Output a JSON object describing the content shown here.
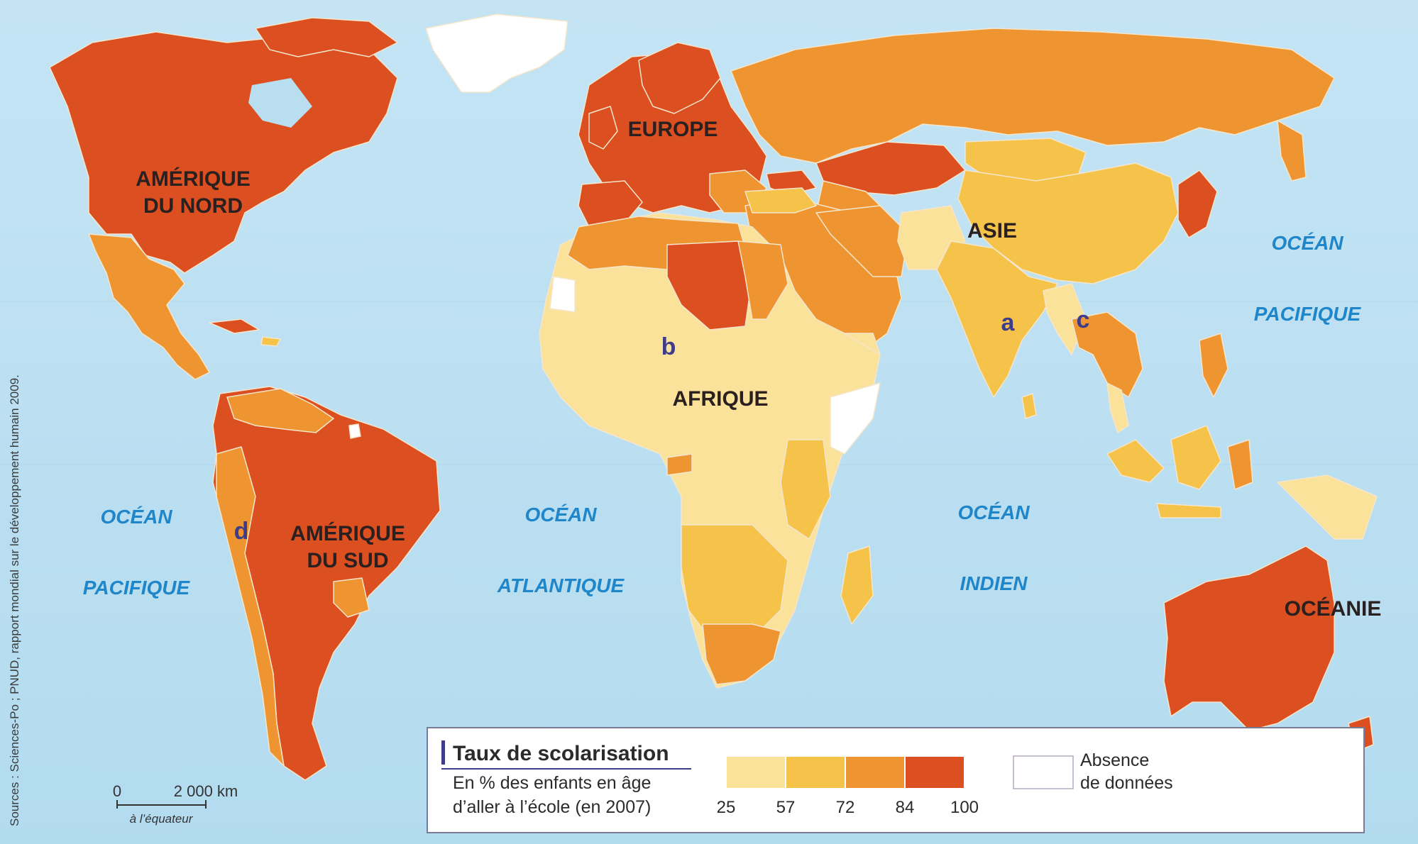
{
  "map": {
    "regions": {
      "north_america": [
        "AMÉRIQUE",
        "DU NORD"
      ],
      "south_america": [
        "AMÉRIQUE",
        "DU SUD"
      ],
      "europe": "EUROPE",
      "africa": "AFRIQUE",
      "asia": "ASIE",
      "oceania": "OCÉANIE"
    },
    "oceans": {
      "pacific_east": [
        "OCÉAN",
        "PACIFIQUE"
      ],
      "pacific_west": [
        "OCÉAN",
        "PACIFIQUE"
      ],
      "atlantic": [
        "OCÉAN",
        "ATLANTIQUE"
      ],
      "indian": [
        "OCÉAN",
        "INDIEN"
      ]
    },
    "markers": {
      "a": "a",
      "b": "b",
      "c": "c",
      "d": "d"
    },
    "source": "Sources : Sciences-Po ; PNUD, rapport mondial sur le développement humain 2009.",
    "scale": {
      "zero": "0",
      "distance": "2 000 km",
      "note": "à l’équateur"
    },
    "colors": {
      "ocean": "#b9def0",
      "class_25_57": "#fbe29a",
      "class_57_72": "#f6c34a",
      "class_72_84": "#ee9531",
      "class_84_100": "#db4f20",
      "no_data": "#ffffff"
    }
  },
  "legend": {
    "title": "Taux de scolarisation",
    "subtitle_line1": "En % des enfants en âge",
    "subtitle_line2": "d’aller à l’école (en 2007)",
    "thresholds": [
      "25",
      "57",
      "72",
      "84",
      "100"
    ],
    "no_data_line1": "Absence",
    "no_data_line2": "de données"
  }
}
